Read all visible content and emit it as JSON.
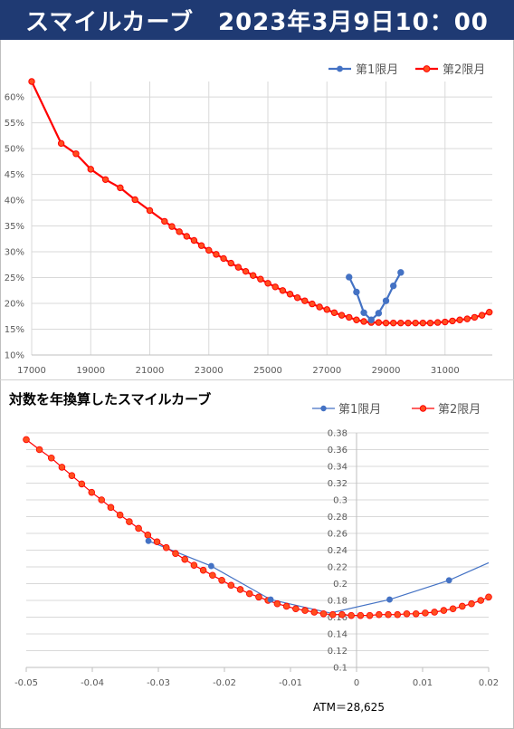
{
  "title": "スマイルカーブ　2023年3月9日10：00",
  "chart_data": [
    {
      "type": "line",
      "title": "",
      "xlabel": "",
      "ylabel": "",
      "xlim": [
        17000,
        32600
      ],
      "ylim": [
        0.1,
        0.63
      ],
      "x_ticks": [
        "17000",
        "19000",
        "21000",
        "23000",
        "25000",
        "27000",
        "29000",
        "31000"
      ],
      "x_tick_values": [
        17000,
        19000,
        21000,
        23000,
        25000,
        27000,
        29000,
        31000
      ],
      "y_ticks": [
        "10%",
        "15%",
        "20%",
        "25%",
        "30%",
        "35%",
        "40%",
        "45%",
        "50%",
        "55%",
        "60%"
      ],
      "y_tick_values": [
        0.1,
        0.15,
        0.2,
        0.25,
        0.3,
        0.35,
        0.4,
        0.45,
        0.5,
        0.55,
        0.6
      ],
      "grid": true,
      "legend_position": "top-right",
      "series": [
        {
          "name": "第1限月",
          "color": "#4472c4",
          "markers": true,
          "x": [
            27750,
            28000,
            28250,
            28500,
            28750,
            29000,
            29250,
            29500
          ],
          "y": [
            0.251,
            0.222,
            0.182,
            0.168,
            0.181,
            0.205,
            0.234,
            0.26
          ]
        },
        {
          "name": "第2限月",
          "color": "#ff0000",
          "marker_fill": "#ff4f1f",
          "markers": true,
          "x": [
            17000,
            18000,
            18500,
            19000,
            19500,
            20000,
            20500,
            21000,
            21500,
            21750,
            22000,
            22250,
            22500,
            22750,
            23000,
            23250,
            23500,
            23750,
            24000,
            24250,
            24500,
            24750,
            25000,
            25250,
            25500,
            25750,
            26000,
            26250,
            26500,
            26750,
            27000,
            27250,
            27500,
            27750,
            28000,
            28250,
            28500,
            28750,
            29000,
            29250,
            29500,
            29750,
            30000,
            30250,
            30500,
            30750,
            31000,
            31250,
            31500,
            31750,
            32000,
            32250,
            32500
          ],
          "y": [
            0.63,
            0.51,
            0.49,
            0.46,
            0.44,
            0.424,
            0.401,
            0.38,
            0.359,
            0.349,
            0.339,
            0.33,
            0.322,
            0.312,
            0.303,
            0.295,
            0.287,
            0.278,
            0.27,
            0.262,
            0.254,
            0.247,
            0.239,
            0.232,
            0.225,
            0.218,
            0.211,
            0.205,
            0.199,
            0.193,
            0.188,
            0.182,
            0.177,
            0.173,
            0.168,
            0.165,
            0.163,
            0.163,
            0.162,
            0.162,
            0.162,
            0.162,
            0.162,
            0.162,
            0.162,
            0.163,
            0.164,
            0.166,
            0.168,
            0.17,
            0.173,
            0.177,
            0.183
          ]
        }
      ]
    },
    {
      "type": "line",
      "title": "対数を年換算したスマイルカーブ",
      "xlabel": "",
      "ylabel": "",
      "xlim": [
        -0.05,
        0.02
      ],
      "ylim": [
        0.1,
        0.38
      ],
      "x_ticks": [
        "-0.05",
        "-0.04",
        "-0.03",
        "-0.02",
        "-0.01",
        "0",
        "0.01",
        "0.02"
      ],
      "x_tick_values": [
        -0.05,
        -0.04,
        -0.03,
        -0.02,
        -0.01,
        0,
        0.01,
        0.02
      ],
      "y_ticks": [
        "0.1",
        "0.12",
        "0.14",
        "0.16",
        "0.18",
        "0.2",
        "0.22",
        "0.24",
        "0.26",
        "0.28",
        "0.3",
        "0.32",
        "0.34",
        "0.36",
        "0.38"
      ],
      "y_tick_values": [
        0.1,
        0.12,
        0.14,
        0.16,
        0.18,
        0.2,
        0.22,
        0.24,
        0.26,
        0.28,
        0.3,
        0.32,
        0.34,
        0.36,
        0.38
      ],
      "grid": true,
      "legend_position": "top-right",
      "annotation": "ATM＝28,625",
      "series": [
        {
          "name": "第1限月",
          "color": "#4472c4",
          "markers": true,
          "marker_indices": [
            0,
            1,
            2,
            4,
            5
          ],
          "x": [
            -0.0315,
            -0.022,
            -0.013,
            -0.004,
            0.005,
            0.014,
            0.02
          ],
          "y": [
            0.251,
            0.221,
            0.181,
            0.165,
            0.181,
            0.204,
            0.225
          ]
        },
        {
          "name": "第2限月",
          "color": "#ff0000",
          "marker_fill": "#ff4f1f",
          "markers": true,
          "x": [
            -0.05,
            -0.048,
            -0.0462,
            -0.0446,
            -0.0431,
            -0.0416,
            -0.0401,
            -0.0386,
            -0.0372,
            -0.0358,
            -0.0344,
            -0.033,
            -0.0316,
            -0.0302,
            -0.0288,
            -0.0274,
            -0.026,
            -0.0246,
            -0.0232,
            -0.0218,
            -0.0204,
            -0.019,
            -0.0176,
            -0.0162,
            -0.0148,
            -0.0134,
            -0.012,
            -0.0106,
            -0.0092,
            -0.0078,
            -0.0064,
            -0.005,
            -0.0036,
            -0.0022,
            -0.0008,
            0.0006,
            0.002,
            0.0034,
            0.0048,
            0.0062,
            0.0076,
            0.009,
            0.0104,
            0.0118,
            0.0132,
            0.0146,
            0.016,
            0.0174,
            0.0188,
            0.02
          ],
          "y": [
            0.372,
            0.36,
            0.35,
            0.339,
            0.329,
            0.319,
            0.309,
            0.3,
            0.291,
            0.282,
            0.274,
            0.266,
            0.258,
            0.25,
            0.243,
            0.236,
            0.229,
            0.222,
            0.216,
            0.21,
            0.204,
            0.198,
            0.193,
            0.188,
            0.184,
            0.18,
            0.176,
            0.173,
            0.17,
            0.168,
            0.166,
            0.164,
            0.163,
            0.163,
            0.162,
            0.162,
            0.162,
            0.163,
            0.163,
            0.163,
            0.164,
            0.164,
            0.165,
            0.166,
            0.168,
            0.17,
            0.173,
            0.176,
            0.18,
            0.184
          ]
        }
      ]
    }
  ]
}
